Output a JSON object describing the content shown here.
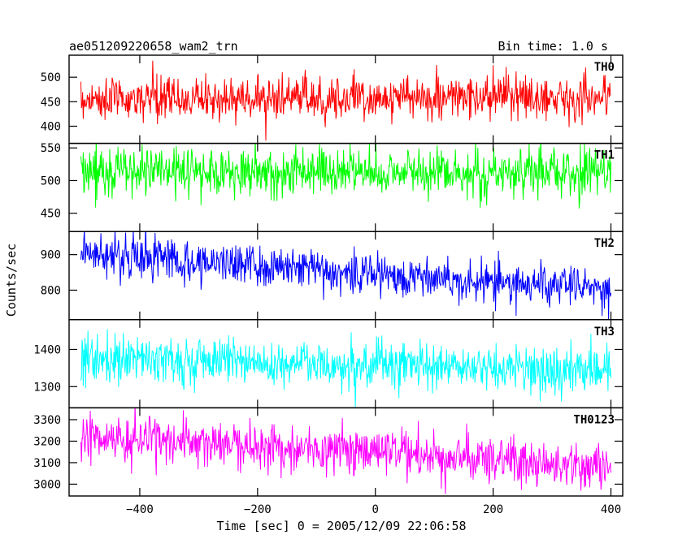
{
  "header": {
    "title": "ae051209220658_wam2_trn",
    "bin_time": "Bin time: 1.0 s"
  },
  "chart_data": {
    "type": "line",
    "title": "ae051209220658_wam2_trn",
    "subtitle": "Bin time: 1.0 s",
    "xlabel": "Time [sec] 0 = 2005/12/09 22:06:58",
    "ylabel": "Counts/sec",
    "xlim": [
      -520,
      420
    ],
    "x_ticks": [
      -400,
      -200,
      0,
      200,
      400
    ],
    "x_tick_labels": [
      "−400",
      "−200",
      "0",
      "200",
      "400"
    ],
    "bin_seconds": 1.0,
    "x_range": [
      -500,
      400
    ],
    "grid": false,
    "legend": "none",
    "panels": [
      {
        "name": "TH0",
        "color": "#ff0000",
        "ylim": [
          365,
          545
        ],
        "ticks": [
          400,
          450,
          500
        ],
        "mean_start": 455,
        "mean_end": 460,
        "noise_sd": 22,
        "spread_band": [
          420,
          500
        ]
      },
      {
        "name": "TH1",
        "color": "#00ff00",
        "ylim": [
          422,
          557
        ],
        "ticks": [
          450,
          500,
          550
        ],
        "mean_start": 515,
        "mean_end": 512,
        "noise_sd": 19,
        "spread_band": [
          470,
          550
        ]
      },
      {
        "name": "TH2",
        "color": "#0000ff",
        "ylim": [
          717,
          965
        ],
        "ticks": [
          800,
          900
        ],
        "mean_start": 905,
        "mean_end": 800,
        "noise_sd": 30,
        "spread_band": [
          760,
          960
        ]
      },
      {
        "name": "TH3",
        "color": "#00ffff",
        "ylim": [
          1243,
          1480
        ],
        "ticks": [
          1300,
          1400
        ],
        "mean_start": 1380,
        "mean_end": 1340,
        "noise_sd": 32,
        "spread_band": [
          1270,
          1460
        ]
      },
      {
        "name": "TH0123",
        "color": "#ff00ff",
        "ylim": [
          2945,
          3355
        ],
        "ticks": [
          3000,
          3100,
          3200,
          3300
        ],
        "mean_start": 3225,
        "mean_end": 3080,
        "noise_sd": 55,
        "spread_band": [
          2960,
          3340
        ]
      }
    ]
  }
}
